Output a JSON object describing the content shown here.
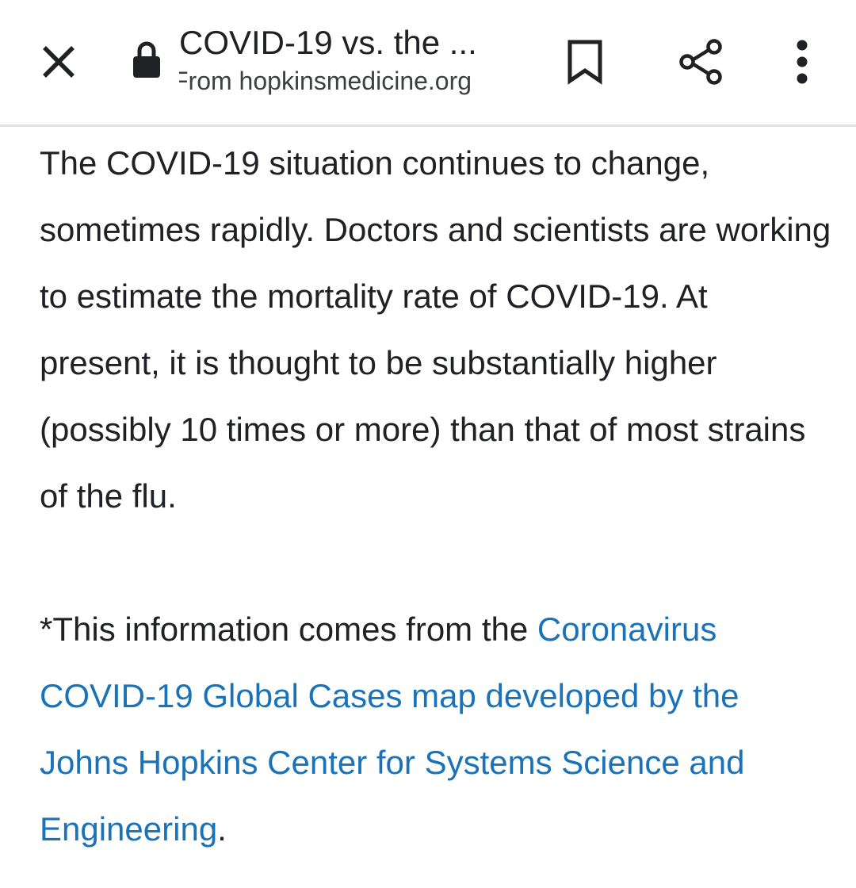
{
  "toolbar": {
    "title": "COVID-19 vs. the ...",
    "source": "From hopkinsmedicine.org",
    "icons": {
      "close": "close-icon",
      "lock": "lock-icon",
      "bookmark": "bookmark-icon",
      "share": "share-icon",
      "menu": "more-vert-icon"
    }
  },
  "article": {
    "paragraph1": "The COVID-19 situation continues to change, sometimes rapidly. Doctors and scientists are working to estimate the mortality rate of COVID-19. At present, it is thought to be substantially higher (possibly 10 times or more) than that of most strains of the flu.",
    "paragraph2_prefix": "*This information comes from the ",
    "paragraph2_link": "Coronavirus COVID-19 Global Cases map developed by the Johns Hopkins Center for Systems Science and Engineering",
    "paragraph2_suffix": "."
  },
  "colors": {
    "text": "#202124",
    "link": "#1a73b8",
    "divider": "#e2e2e2"
  }
}
